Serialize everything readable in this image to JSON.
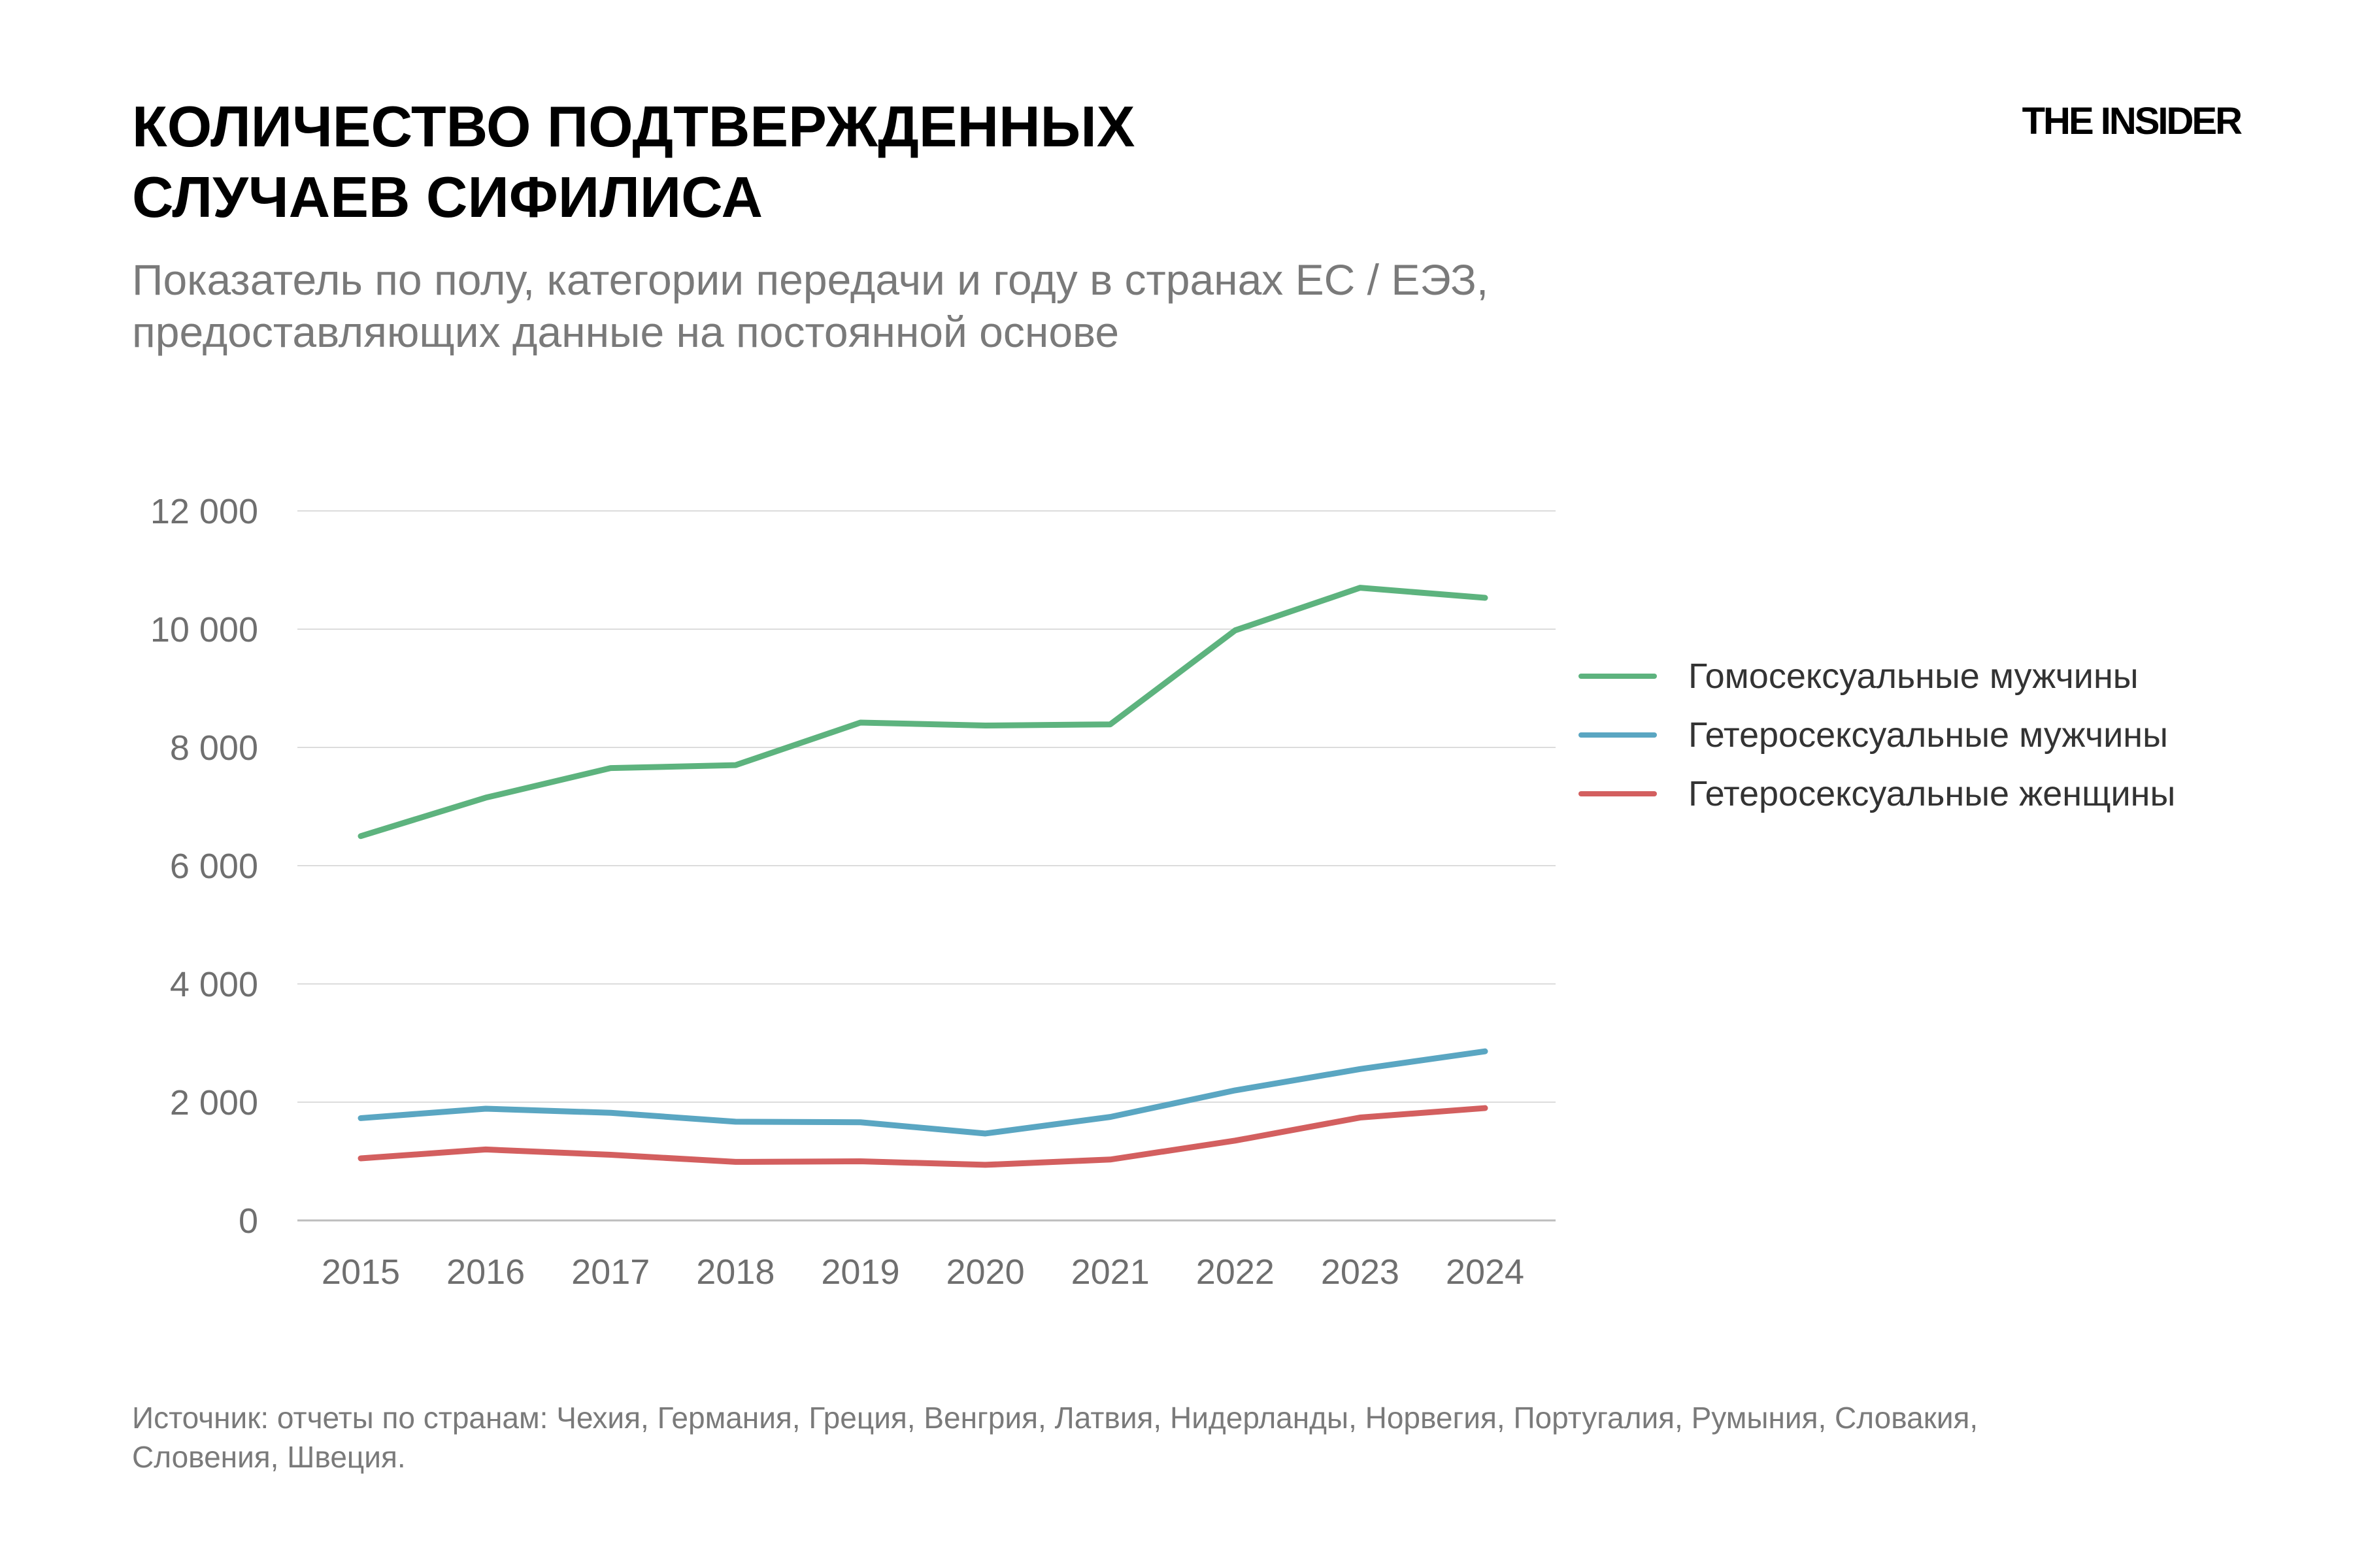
{
  "header": {
    "title_line1": "КОЛИЧЕСТВО ПОДТВЕРЖДЕННЫХ",
    "title_line2": "СЛУЧАЕВ СИФИЛИСА",
    "brand": "THE INSIDER",
    "subtitle_line1": "Показатель по полу, категории передачи и году в странах ЕС / ЕЭЗ,",
    "subtitle_line2": "предоставляющих данные на постоянной основе"
  },
  "footer": {
    "source_line1": "Источник: отчеты по странам: Чехия, Германия, Греция, Венгрия, Латвия, Нидерланды, Норвегия, Португалия, Румыния, Словакия,",
    "source_line2": "Словения, Швеция."
  },
  "chart_data": {
    "type": "line",
    "x": [
      "2015",
      "2016",
      "2017",
      "2018",
      "2019",
      "2020",
      "2021",
      "2022",
      "2023",
      "2024"
    ],
    "ylim": [
      0,
      12000
    ],
    "yticks": [
      0,
      2000,
      4000,
      6000,
      8000,
      10000,
      12000
    ],
    "ytick_labels": [
      "0",
      "2 000",
      "4 000",
      "6 000",
      "8 000",
      "10 000",
      "12 000"
    ],
    "grid": true,
    "legend_position": "right",
    "series": [
      {
        "name": "Гомосексуальные мужчины",
        "color": "#5db37e",
        "values": [
          6500,
          7150,
          7650,
          7700,
          8420,
          8370,
          8390,
          9980,
          10700,
          10530
        ]
      },
      {
        "name": "Гетеросексуальные мужчины",
        "color": "#5aa6c2",
        "values": [
          1730,
          1890,
          1820,
          1670,
          1660,
          1470,
          1750,
          2200,
          2560,
          2860
        ]
      },
      {
        "name": "Гетеросексуальные женщины",
        "color": "#d35f5f",
        "values": [
          1050,
          1200,
          1110,
          990,
          1000,
          940,
          1030,
          1350,
          1740,
          1900
        ]
      }
    ]
  }
}
